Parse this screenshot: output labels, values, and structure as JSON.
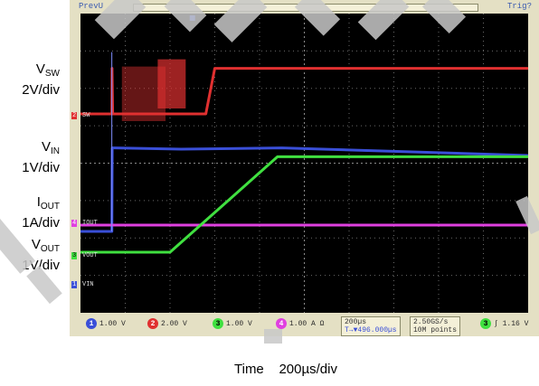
{
  "side_labels": [
    {
      "main": "V",
      "sub": "SW",
      "div": "2V/div"
    },
    {
      "main": "V",
      "sub": "IN",
      "div": "1V/div"
    },
    {
      "main": "I",
      "sub": "OUT",
      "div": "1A/div"
    },
    {
      "main": "V",
      "sub": "OUT",
      "div": "1V/div"
    }
  ],
  "status_text": "PrevU",
  "trigger_text": "Trig?",
  "time_label": "Time    200µs/div",
  "channel_markers": [
    "SW",
    "IOUT",
    "VOUT",
    "VIN"
  ],
  "channel_marker_nums": [
    "2",
    "4",
    "3",
    "1"
  ],
  "bottom": {
    "ch1": {
      "num": "1",
      "text": "1.00 V"
    },
    "ch2": {
      "num": "2",
      "text": "2.00 V"
    },
    "ch3": {
      "num": "3",
      "text": "1.00 V"
    },
    "ch4": {
      "num": "4",
      "text": "1.00 A  Ω"
    },
    "timebase_line1": "200µs",
    "timebase_line2": "T→▼496.000µs",
    "sample_line1": "2.50GS/s",
    "sample_line2": "10M points",
    "trig_num": "3",
    "trig_text": "∫  1.16 V"
  },
  "colors": {
    "vin": "#3a4fd8",
    "sw": "#e03030",
    "vout": "#40e040",
    "iout": "#e040e0",
    "grid": "#6a6a6a"
  },
  "chart_data": {
    "type": "line",
    "title": "",
    "xlabel": "Time 200µs/div",
    "x_unit": "µs",
    "xlim": [
      0,
      2000
    ],
    "grid": true,
    "series": [
      {
        "name": "VSW",
        "scale": "2V/div",
        "x": [
          0,
          140,
          141,
          144,
          400,
          560,
          600,
          2000
        ],
        "values": [
          0,
          0,
          8.0,
          0,
          0,
          0,
          8.0,
          8.0
        ]
      },
      {
        "name": "VIN",
        "scale": "1V/div",
        "x": [
          0,
          140,
          142,
          450,
          900,
          2000
        ],
        "values": [
          0,
          0,
          3.3,
          3.25,
          3.3,
          3.0
        ]
      },
      {
        "name": "IOUT",
        "scale": "1A/div",
        "x": [
          0,
          2000
        ],
        "values": [
          0.0,
          0.0
        ]
      },
      {
        "name": "VOUT",
        "scale": "1V/div",
        "x": [
          0,
          400,
          880,
          2000
        ],
        "values": [
          0,
          0,
          3.3,
          3.3
        ]
      }
    ]
  }
}
